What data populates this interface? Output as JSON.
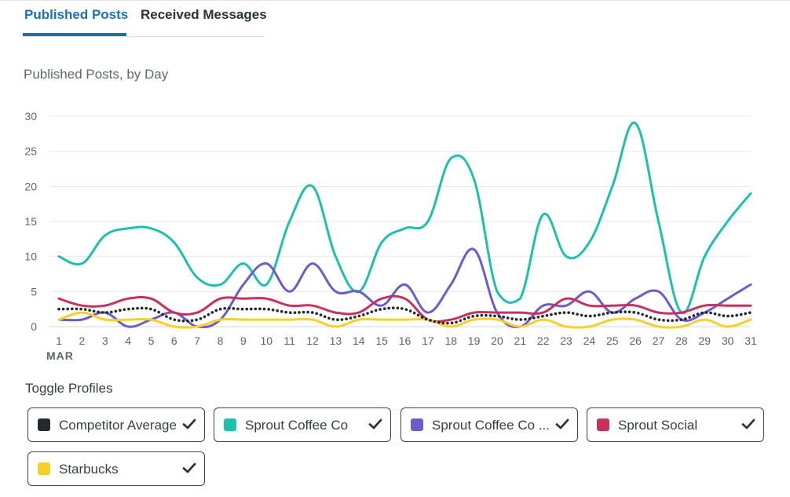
{
  "tabs": {
    "published": "Published Posts",
    "received": "Received Messages"
  },
  "chart_heading": "Published Posts, by Day",
  "toggle_heading": "Toggle Profiles",
  "toggles": [
    {
      "label": "Competitor Average",
      "color": "#24292b",
      "checked": true
    },
    {
      "label": "Sprout Coffee Co",
      "color": "#1dbfad",
      "checked": true
    },
    {
      "label": "Sprout Coffee Co ...",
      "color": "#6d5acb",
      "checked": true
    },
    {
      "label": "Sprout Social",
      "color": "#cc2f5c",
      "checked": true
    },
    {
      "label": "Starbucks",
      "color": "#f8cf2a",
      "checked": true
    }
  ],
  "chart_data": {
    "type": "line",
    "title": "Published Posts, by Day",
    "x": [
      1,
      2,
      3,
      4,
      5,
      6,
      7,
      8,
      9,
      10,
      11,
      12,
      13,
      14,
      15,
      16,
      17,
      18,
      19,
      20,
      21,
      22,
      23,
      24,
      25,
      26,
      27,
      28,
      29,
      30,
      31
    ],
    "x_tick_labels": [
      "1",
      "2",
      "3",
      "4",
      "5",
      "6",
      "7",
      "8",
      "9",
      "10",
      "11",
      "12",
      "13",
      "14",
      "15",
      "16",
      "17",
      "18",
      "19",
      "20",
      "21",
      "22",
      "23",
      "24",
      "25",
      "26",
      "27",
      "28",
      "29",
      "30",
      "31"
    ],
    "x_month_label": "MAR",
    "ylim": [
      0,
      30
    ],
    "y_ticks": [
      0,
      5,
      10,
      15,
      20,
      25,
      30
    ],
    "grid": true,
    "series": [
      {
        "name": "Sprout Coffee Co",
        "color": "#1dbfad",
        "style": "solid",
        "values": [
          10,
          9,
          13,
          14,
          14,
          12,
          7,
          6,
          9,
          6,
          15,
          20,
          10,
          5,
          12,
          14,
          15,
          24,
          21,
          5,
          4,
          16,
          10,
          12,
          20,
          29,
          15,
          2,
          10,
          15,
          19
        ]
      },
      {
        "name": "Sprout Coffee Co ...",
        "color": "#6d5acb",
        "style": "solid",
        "values": [
          1,
          1,
          2,
          0,
          1,
          2,
          0,
          1,
          6,
          9,
          5,
          9,
          5,
          5,
          3,
          6,
          2,
          6,
          11,
          2,
          0,
          3,
          3,
          5,
          2,
          4,
          5,
          1,
          2,
          4,
          6
        ]
      },
      {
        "name": "Sprout Social",
        "color": "#cc2f5c",
        "style": "solid",
        "values": [
          4,
          3,
          3,
          4,
          4,
          2,
          2,
          4,
          4,
          4,
          3,
          3,
          2,
          2,
          4,
          4,
          1,
          1,
          2,
          2,
          2,
          2,
          4,
          3,
          3,
          3,
          2,
          2,
          3,
          3,
          3
        ]
      },
      {
        "name": "Starbucks",
        "color": "#f8cf2a",
        "style": "solid",
        "values": [
          1,
          2,
          1,
          1,
          1,
          0,
          0,
          1,
          1,
          1,
          1,
          1,
          0,
          1,
          1,
          1,
          1,
          0,
          1,
          1,
          0,
          1,
          0,
          0,
          1,
          1,
          0,
          0,
          1,
          0,
          1
        ]
      },
      {
        "name": "Competitor Average",
        "color": "#24292b",
        "style": "dotted",
        "values": [
          2.5,
          2.5,
          2,
          2.5,
          2.5,
          1,
          1,
          2.5,
          2.5,
          2.5,
          2,
          2,
          1,
          1.5,
          2.5,
          2.5,
          1,
          0.5,
          1.5,
          1.5,
          1,
          1.5,
          2,
          1.5,
          2,
          2,
          1,
          1,
          2,
          1.5,
          2
        ]
      }
    ]
  }
}
